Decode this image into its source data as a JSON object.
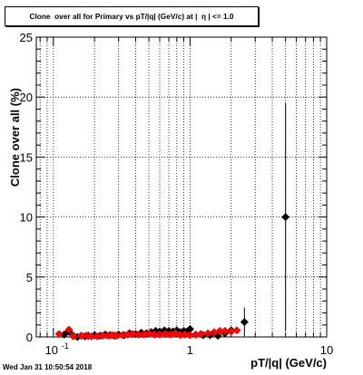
{
  "title": "Clone  over all for Primary vs pT/|q| (GeV/c) at |  η | <= 1.0",
  "timestamp": "Wed Jan 31 10:50:54 2018",
  "chart_data": {
    "type": "scatter",
    "title": "Clone  over all for Primary vs pT/|q| (GeV/c) at |  η | <= 1.0",
    "xlabel": "pT/|q| (GeV/c)",
    "ylabel": "Clone  over all (%)",
    "x_scale": "log",
    "xlim": [
      0.075,
      10
    ],
    "ylim": [
      0,
      25
    ],
    "grid": true,
    "x_tick_labels": [
      "10",
      "1",
      "10"
    ],
    "x_tick_label_exponent": "-1",
    "y_tick_labels": [
      "0",
      "5",
      "10",
      "15",
      "20",
      "25"
    ],
    "y_ticks": [
      0,
      5,
      10,
      15,
      20,
      25
    ],
    "series": [
      {
        "color": "#000000",
        "marker": "diamond",
        "points": [
          {
            "x": 0.12,
            "y": 0.2
          },
          {
            "x": 0.13,
            "y": 0.45
          },
          {
            "x": 0.14,
            "y": 0.1
          },
          {
            "x": 0.15,
            "y": 0.0
          },
          {
            "x": 0.16,
            "y": 0.1
          },
          {
            "x": 0.17,
            "y": 0.05
          },
          {
            "x": 0.18,
            "y": 0.1
          },
          {
            "x": 0.2,
            "y": 0.15
          },
          {
            "x": 0.22,
            "y": 0.1
          },
          {
            "x": 0.24,
            "y": 0.2
          },
          {
            "x": 0.26,
            "y": 0.15
          },
          {
            "x": 0.28,
            "y": 0.1
          },
          {
            "x": 0.3,
            "y": 0.2
          },
          {
            "x": 0.33,
            "y": 0.15
          },
          {
            "x": 0.36,
            "y": 0.3
          },
          {
            "x": 0.4,
            "y": 0.25
          },
          {
            "x": 0.44,
            "y": 0.35
          },
          {
            "x": 0.48,
            "y": 0.3
          },
          {
            "x": 0.52,
            "y": 0.4
          },
          {
            "x": 0.56,
            "y": 0.5
          },
          {
            "x": 0.6,
            "y": 0.45
          },
          {
            "x": 0.65,
            "y": 0.55
          },
          {
            "x": 0.7,
            "y": 0.5
          },
          {
            "x": 0.75,
            "y": 0.45
          },
          {
            "x": 0.8,
            "y": 0.55
          },
          {
            "x": 0.85,
            "y": 0.4
          },
          {
            "x": 0.9,
            "y": 0.5
          },
          {
            "x": 0.95,
            "y": 0.45
          },
          {
            "x": 1.0,
            "y": 0.65
          },
          {
            "x": 1.1,
            "y": 0.2
          },
          {
            "x": 1.25,
            "y": 0.15
          },
          {
            "x": 1.4,
            "y": 0.15
          },
          {
            "x": 1.6,
            "y": 0.1
          },
          {
            "x": 1.8,
            "y": 0.3
          },
          {
            "x": 2.0,
            "y": 0.55
          },
          {
            "x": 2.5,
            "y": 1.25,
            "err": 1.2
          },
          {
            "x": 5.0,
            "y": 10.0,
            "err": 9.5
          }
        ]
      },
      {
        "color": "#ff0000",
        "marker": "diamond",
        "points": [
          {
            "x": 0.11,
            "y": 0.25
          },
          {
            "x": 0.13,
            "y": 0.6
          },
          {
            "x": 0.14,
            "y": 0.05
          },
          {
            "x": 0.16,
            "y": 0.1
          },
          {
            "x": 0.175,
            "y": 0.1
          },
          {
            "x": 0.19,
            "y": 0.05
          },
          {
            "x": 0.21,
            "y": 0.05
          },
          {
            "x": 0.23,
            "y": 0.1
          },
          {
            "x": 0.25,
            "y": 0.1
          },
          {
            "x": 0.27,
            "y": 0.15
          },
          {
            "x": 0.29,
            "y": 0.1
          },
          {
            "x": 0.32,
            "y": 0.15
          },
          {
            "x": 0.35,
            "y": 0.2
          },
          {
            "x": 0.38,
            "y": 0.25
          },
          {
            "x": 0.42,
            "y": 0.2
          },
          {
            "x": 0.46,
            "y": 0.2
          },
          {
            "x": 0.5,
            "y": 0.3
          },
          {
            "x": 0.55,
            "y": 0.2
          },
          {
            "x": 0.6,
            "y": 0.2
          },
          {
            "x": 0.66,
            "y": 0.25
          },
          {
            "x": 0.72,
            "y": 0.2
          },
          {
            "x": 0.78,
            "y": 0.3
          },
          {
            "x": 0.85,
            "y": 0.15
          },
          {
            "x": 0.92,
            "y": 0.2
          },
          {
            "x": 1.0,
            "y": 0.15
          },
          {
            "x": 1.1,
            "y": 0.2
          },
          {
            "x": 1.2,
            "y": 0.25
          },
          {
            "x": 1.35,
            "y": 0.3
          },
          {
            "x": 1.5,
            "y": 0.4
          },
          {
            "x": 1.65,
            "y": 0.5
          },
          {
            "x": 1.8,
            "y": 0.5
          },
          {
            "x": 2.0,
            "y": 0.45
          },
          {
            "x": 2.2,
            "y": 0.55
          }
        ]
      }
    ]
  }
}
